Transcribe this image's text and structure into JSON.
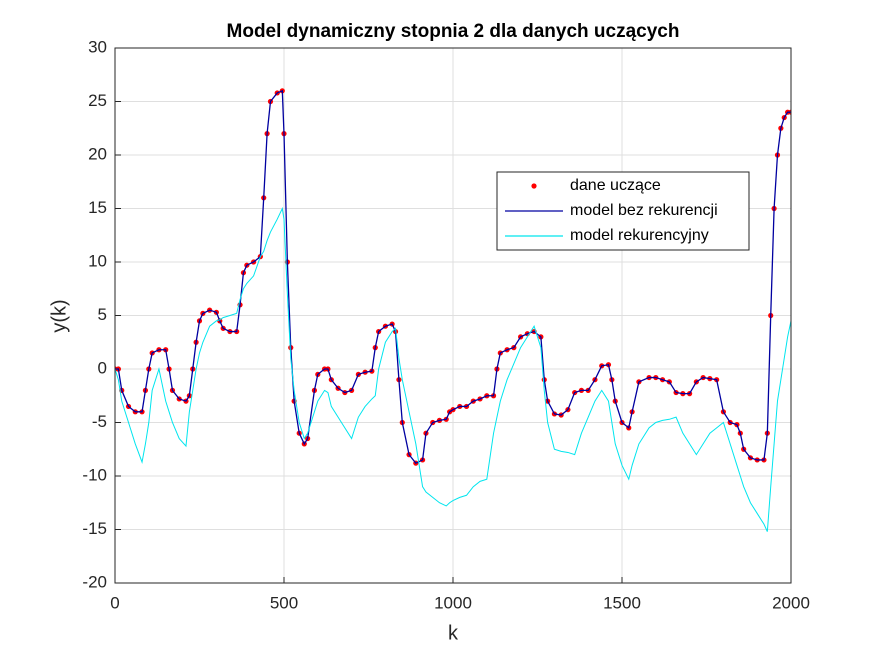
{
  "chart_data": {
    "type": "line",
    "title": "Model dynamiczny stopnia 2 dla danych uczących",
    "xlabel": "k",
    "ylabel": "y(k)",
    "xlim": [
      0,
      2000
    ],
    "xticks": [
      0,
      500,
      1000,
      1500,
      2000
    ],
    "ylim": [
      -20,
      30
    ],
    "yticks": [
      -20,
      -15,
      -10,
      -5,
      0,
      5,
      10,
      15,
      20,
      25,
      30
    ],
    "grid": true,
    "legend": "upper right",
    "x": [
      0,
      10,
      20,
      40,
      60,
      80,
      90,
      100,
      110,
      130,
      150,
      160,
      170,
      190,
      210,
      220,
      230,
      240,
      250,
      260,
      280,
      300,
      310,
      320,
      340,
      360,
      370,
      380,
      390,
      410,
      430,
      440,
      450,
      460,
      480,
      495,
      500,
      510,
      520,
      530,
      545,
      560,
      570,
      590,
      600,
      620,
      630,
      640,
      660,
      680,
      700,
      720,
      740,
      760,
      770,
      780,
      800,
      820,
      830,
      840,
      850,
      870,
      890,
      910,
      920,
      940,
      960,
      980,
      990,
      1000,
      1020,
      1040,
      1060,
      1080,
      1100,
      1120,
      1130,
      1140,
      1160,
      1180,
      1200,
      1220,
      1240,
      1260,
      1270,
      1280,
      1300,
      1320,
      1340,
      1360,
      1380,
      1400,
      1420,
      1440,
      1460,
      1470,
      1480,
      1500,
      1520,
      1530,
      1550,
      1580,
      1600,
      1620,
      1640,
      1660,
      1680,
      1700,
      1720,
      1740,
      1760,
      1780,
      1800,
      1820,
      1840,
      1850,
      1860,
      1880,
      1900,
      1920,
      1930,
      1940,
      1950,
      1960,
      1970,
      1980,
      1990,
      2000
    ],
    "series": [
      {
        "name": "dane uczące",
        "color": "#ff0000",
        "style": "marker",
        "values": [
          0,
          0,
          -2,
          -3.5,
          -4,
          -4,
          -2,
          0,
          1.5,
          1.8,
          1.8,
          0,
          -2,
          -2.8,
          -3,
          -2.5,
          0,
          2.5,
          4.5,
          5.2,
          5.5,
          5.3,
          4.5,
          3.8,
          3.5,
          3.5,
          6,
          9,
          9.7,
          10,
          10.5,
          16,
          22,
          25,
          25.8,
          26,
          22,
          10,
          2,
          -3,
          -6,
          -7,
          -6.5,
          -2,
          -0.5,
          0,
          0,
          -1,
          -1.8,
          -2.2,
          -2,
          -0.5,
          -0.3,
          -0.2,
          2,
          3.5,
          4,
          4.2,
          3.5,
          -1,
          -5,
          -8,
          -8.8,
          -8.5,
          -6,
          -5,
          -4.8,
          -4.7,
          -4,
          -3.8,
          -3.5,
          -3.5,
          -3,
          -2.8,
          -2.5,
          -2.5,
          0,
          1.5,
          1.8,
          2,
          3,
          3.3,
          3.5,
          3,
          -1,
          -3,
          -4.2,
          -4.3,
          -3.8,
          -2.2,
          -2,
          -2,
          -1,
          0.3,
          0.4,
          -1,
          -3,
          -5,
          -5.5,
          -4,
          -1.2,
          -0.8,
          -0.8,
          -1,
          -1.2,
          -2.2,
          -2.3,
          -2.3,
          -1.2,
          -0.8,
          -0.9,
          -1,
          -4,
          -5,
          -5.2,
          -6,
          -7.5,
          -8.3,
          -8.5,
          -8.5,
          -6,
          5,
          15,
          20,
          22.5,
          23.5,
          24,
          24
        ]
      },
      {
        "name": "model bez rekurencji",
        "color": "#0000a0",
        "style": "line",
        "values": [
          0,
          0,
          -2,
          -3.5,
          -4,
          -4,
          -2,
          0,
          1.5,
          1.8,
          1.8,
          0,
          -2,
          -2.8,
          -3,
          -2.5,
          0,
          2.5,
          4.5,
          5.2,
          5.5,
          5.3,
          4.5,
          3.8,
          3.5,
          3.5,
          6,
          9,
          9.7,
          10,
          10.5,
          16,
          22,
          25,
          25.8,
          26,
          22,
          10,
          2,
          -3,
          -6,
          -7,
          -6.5,
          -2,
          -0.5,
          0,
          0,
          -1,
          -1.8,
          -2.2,
          -2,
          -0.5,
          -0.3,
          -0.2,
          2,
          3.5,
          4,
          4.2,
          3.5,
          -1,
          -5,
          -8,
          -8.8,
          -8.5,
          -6,
          -5,
          -4.8,
          -4.7,
          -4,
          -3.8,
          -3.5,
          -3.5,
          -3,
          -2.8,
          -2.5,
          -2.5,
          0,
          1.5,
          1.8,
          2,
          3,
          3.3,
          3.5,
          3,
          -1,
          -3,
          -4.2,
          -4.3,
          -3.8,
          -2.2,
          -2,
          -2,
          -1,
          0.3,
          0.4,
          -1,
          -3,
          -5,
          -5.5,
          -4,
          -1.2,
          -0.8,
          -0.8,
          -1,
          -1.2,
          -2.2,
          -2.3,
          -2.3,
          -1.2,
          -0.8,
          -0.9,
          -1,
          -4,
          -5,
          -5.2,
          -6,
          -7.5,
          -8.3,
          -8.5,
          -8.5,
          -6,
          5,
          15,
          20,
          22.5,
          23.5,
          24,
          24
        ]
      },
      {
        "name": "model rekurencyjny",
        "color": "#00e5ee",
        "style": "line",
        "values": [
          0,
          -1,
          -3,
          -5,
          -7,
          -8.7,
          -7,
          -5,
          -2,
          0,
          -3,
          -4,
          -5,
          -6.5,
          -7.2,
          -4,
          -2,
          0,
          1.5,
          2.5,
          4,
          4.5,
          4.6,
          4.8,
          5,
          5.2,
          6.5,
          7.5,
          8,
          8.7,
          10.5,
          11,
          12,
          12.8,
          14,
          15,
          14,
          7,
          1,
          -2,
          -5,
          -6.5,
          -6,
          -4,
          -3,
          -2,
          -2.2,
          -3.5,
          -4.5,
          -5.5,
          -6.5,
          -4.5,
          -3.5,
          -2.8,
          -2.5,
          0,
          2.5,
          3.5,
          3.8,
          1,
          -1,
          -4,
          -7,
          -11,
          -11.5,
          -12,
          -12.5,
          -12.8,
          -12.5,
          -12.3,
          -12,
          -11.8,
          -11,
          -10.5,
          -10.3,
          -6,
          -4.5,
          -3,
          -1,
          0.5,
          2,
          3,
          4,
          2,
          -2,
          -5,
          -7.5,
          -7.7,
          -7.8,
          -8,
          -6,
          -4.5,
          -3,
          -2,
          -3,
          -5,
          -7,
          -9,
          -10.3,
          -9,
          -7,
          -5.5,
          -5,
          -4.8,
          -4.7,
          -4.5,
          -6,
          -7,
          -8,
          -7,
          -6,
          -5.5,
          -5,
          -7,
          -9,
          -10,
          -11,
          -12.5,
          -13.5,
          -14.5,
          -15.2,
          -11,
          -7,
          -3,
          -1,
          1,
          3,
          4.5
        ]
      }
    ]
  }
}
